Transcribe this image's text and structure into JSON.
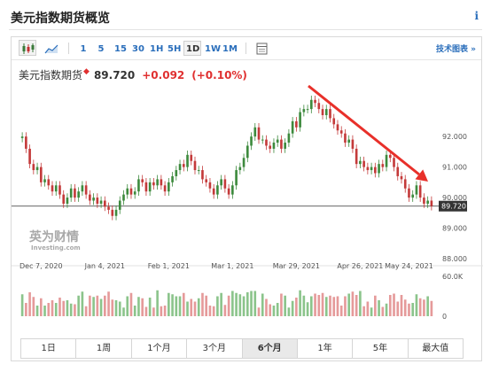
{
  "header": {
    "title": "美元指数期货概览",
    "info_icon": "i"
  },
  "toolbar": {
    "timeframes": [
      "1",
      "5",
      "15",
      "30",
      "1H",
      "5H",
      "1D",
      "1W",
      "1M"
    ],
    "active_timeframe": "1D",
    "icons": [
      "candlestick-icon",
      "area-chart-icon",
      "table-icon"
    ],
    "tech_link": "技术图表 »"
  },
  "quote": {
    "name": "美元指数期货",
    "price": "89.720",
    "change": "+0.092",
    "change_pct": "(+0.10%)",
    "up_color": "#e03030"
  },
  "watermark": {
    "line1": "英为财情",
    "line2": "Investing.com"
  },
  "arrow_color": "#e8302a",
  "range_buttons": [
    "1日",
    "1周",
    "1个月",
    "3个月",
    "6个月",
    "1年",
    "5年",
    "最大值"
  ],
  "active_range": "6个月",
  "chart_data": {
    "type": "candlestick",
    "x_tick_labels": [
      "Dec 7, 2020",
      "Jan 4, 2021",
      "Feb 1, 2021",
      "Mar 1, 2021",
      "Mar 29, 2021",
      "Apr 26, 2021",
      "May 24, 2021"
    ],
    "y_ticks": [
      88.0,
      89.0,
      90.0,
      91.0,
      92.0
    ],
    "y_tick_labels": [
      "88.000",
      "89.000",
      "90.000",
      "91.000",
      "92.000"
    ],
    "ylim": [
      88.0,
      93.6
    ],
    "last_price": 89.72,
    "last_price_label": "89.720",
    "volume_ticks": [
      "60.0K",
      "0"
    ],
    "closes": [
      92.0,
      91.6,
      91.1,
      90.9,
      91.0,
      90.5,
      90.6,
      90.4,
      90.2,
      90.4,
      90.1,
      89.8,
      90.0,
      90.3,
      90.0,
      90.2,
      90.4,
      90.1,
      89.9,
      90.0,
      89.8,
      89.9,
      89.7,
      89.6,
      89.4,
      89.6,
      89.9,
      90.1,
      90.3,
      90.1,
      90.2,
      90.6,
      90.5,
      90.2,
      90.5,
      90.4,
      90.6,
      90.4,
      90.2,
      90.5,
      90.7,
      90.9,
      91.1,
      91.0,
      91.4,
      91.2,
      90.9,
      90.9,
      90.6,
      90.5,
      90.3,
      90.1,
      90.4,
      90.6,
      90.3,
      90.1,
      90.4,
      90.9,
      91.0,
      91.3,
      91.7,
      92.0,
      92.3,
      91.9,
      91.9,
      91.7,
      91.6,
      91.8,
      91.9,
      91.6,
      91.8,
      92.1,
      92.5,
      92.3,
      92.8,
      92.9,
      92.9,
      93.2,
      93.1,
      92.9,
      92.7,
      92.9,
      92.6,
      92.4,
      92.2,
      92.1,
      91.8,
      91.9,
      91.6,
      91.1,
      91.2,
      91.0,
      90.9,
      91.0,
      90.8,
      91.1,
      91.0,
      91.4,
      91.3,
      91.0,
      90.7,
      90.6,
      90.3,
      90.0,
      90.1,
      90.4,
      90.0,
      89.8,
      89.9,
      89.72
    ],
    "volumes": [
      33000,
      20000,
      36000,
      29000,
      16000,
      27000,
      16000,
      20000,
      24000,
      20000,
      28000,
      23000,
      24000,
      19000,
      18000,
      31000,
      37000,
      15000,
      31000,
      29000,
      31000,
      26000,
      31000,
      37000,
      25000,
      24000,
      22000,
      13000,
      30000,
      35000,
      16000,
      29000,
      27000,
      14000,
      28000,
      13000,
      39000,
      15000,
      16000,
      35000,
      33000,
      30000,
      30000,
      35000,
      22000,
      26000,
      22000,
      27000,
      35000,
      31000,
      16000,
      15000,
      30000,
      35000,
      17000,
      31000,
      38000,
      35000,
      33000,
      30000,
      36000,
      38000,
      38000,
      13000,
      34000,
      26000,
      18000,
      16000,
      20000,
      34000,
      31000,
      13000,
      23000,
      28000,
      39000,
      31000,
      21000,
      30000,
      34000,
      32000,
      35000,
      29000,
      31000,
      29000,
      30000,
      16000,
      30000,
      34000,
      37000,
      32000,
      38000,
      15000,
      22000,
      13000,
      31000,
      24000,
      14000,
      19000,
      32000,
      34000,
      22000,
      32000,
      25000,
      19000,
      20000,
      33000,
      27000,
      25000,
      30000,
      23000
    ]
  }
}
